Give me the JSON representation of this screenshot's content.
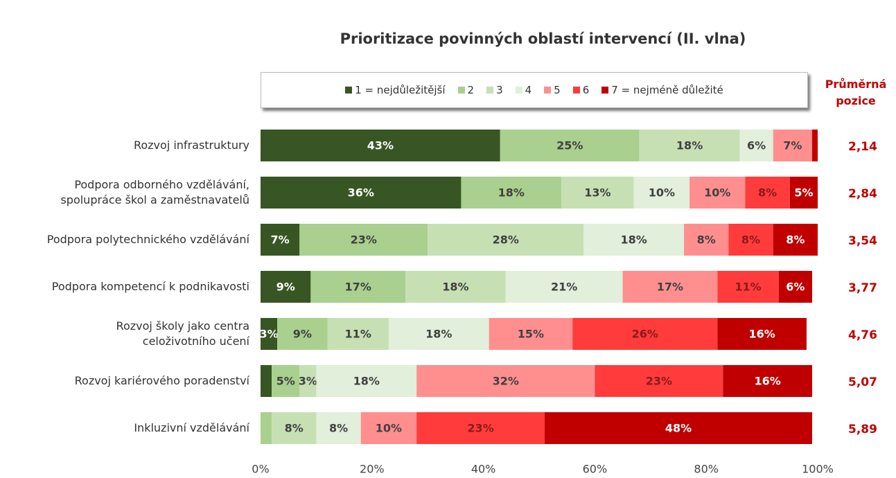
{
  "chart_data": {
    "type": "bar",
    "orientation": "horizontal",
    "stacked": true,
    "title": "Prioritizace povinných oblastí intervencí (II. vlna)",
    "categories": [
      "Rozvoj infrastruktury",
      "Podpora odborného vzdělávání,\nspolupráce škol a zaměstnavatelů",
      "Podpora polytechnického vzdělávání",
      "Podpora kompetencí k podnikavosti",
      "Rozvoj školy jako centra\nceloživotního učení",
      "Rozvoj kariérového poradenství",
      "Inkluzivní vzdělávání"
    ],
    "series": [
      {
        "name": "1 = nejdůležitější",
        "color": "#375623",
        "label_color": "#ffffff",
        "values": [
          43,
          36,
          7,
          9,
          3,
          2,
          0
        ],
        "value_labels": [
          "43%",
          "36%",
          "7%",
          "9%",
          "3%",
          null,
          null
        ]
      },
      {
        "name": "2",
        "color": "#a9d08e",
        "label_color": "#404040",
        "values": [
          25,
          18,
          23,
          17,
          9,
          5,
          2
        ],
        "value_labels": [
          "25%",
          "18%",
          "23%",
          "17%",
          "9%",
          "5%",
          null
        ]
      },
      {
        "name": "3",
        "color": "#c6e0b4",
        "label_color": "#404040",
        "values": [
          18,
          13,
          28,
          18,
          11,
          3,
          8
        ],
        "value_labels": [
          "18%",
          "13%",
          "28%",
          "18%",
          "11%",
          "3%",
          "8%"
        ]
      },
      {
        "name": "4",
        "color": "#e2efda",
        "label_color": "#404040",
        "values": [
          6,
          10,
          18,
          21,
          18,
          18,
          8
        ],
        "value_labels": [
          "6%",
          "10%",
          "18%",
          "21%",
          "18%",
          "18%",
          "8%"
        ]
      },
      {
        "name": "5",
        "color": "#ff8f8f",
        "label_color": "#404040",
        "values": [
          7,
          10,
          8,
          17,
          15,
          32,
          10
        ],
        "value_labels": [
          "7%",
          "10%",
          "8%",
          "17%",
          "15%",
          "32%",
          "10%"
        ]
      },
      {
        "name": "6",
        "color": "#ff3b3b",
        "label_color": "#8b1a1a",
        "values": [
          0,
          8,
          8,
          11,
          26,
          23,
          23
        ],
        "value_labels": [
          null,
          "8%",
          "8%",
          "11%",
          "26%",
          "23%",
          "23%"
        ]
      },
      {
        "name": "7 = nejméně důležité",
        "color": "#c00000",
        "label_color": "#ffffff",
        "values": [
          1,
          5,
          8,
          6,
          16,
          16,
          48
        ],
        "value_labels": [
          null,
          "5%",
          "8%",
          "6%",
          "16%",
          "16%",
          "48%"
        ]
      }
    ],
    "xlim": [
      0,
      100
    ],
    "xticks": [
      {
        "value": 0,
        "label": "0%"
      },
      {
        "value": 20,
        "label": "20%"
      },
      {
        "value": 40,
        "label": "40%"
      },
      {
        "value": 60,
        "label": "60%"
      },
      {
        "value": 80,
        "label": "80%"
      },
      {
        "value": 100,
        "label": "100%"
      }
    ],
    "average": {
      "title": "Průměrná pozice",
      "color": "#c00000",
      "values": [
        2.14,
        2.84,
        3.54,
        3.77,
        4.76,
        5.07,
        5.89
      ],
      "value_labels": [
        "2,14",
        "2,84",
        "3,54",
        "3,77",
        "4,76",
        "5,07",
        "5,89"
      ]
    }
  }
}
